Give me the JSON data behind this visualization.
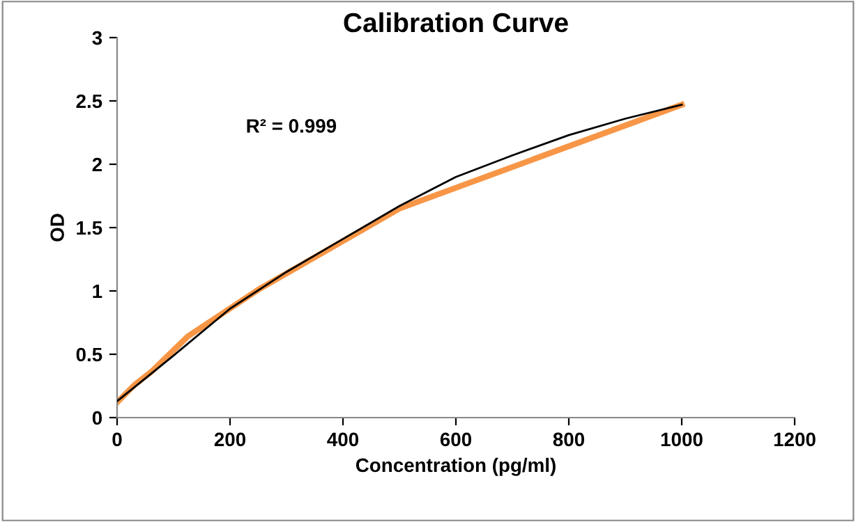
{
  "chart_data": {
    "type": "line",
    "title": "Calibration Curve",
    "xlabel": "Concentration (pg/ml)",
    "ylabel": "OD",
    "annotations": [
      "R² = 0.999"
    ],
    "series": [
      {
        "color": "#f79646",
        "x": [
          0,
          15.6,
          31.25,
          62.5,
          125,
          250,
          500,
          1000
        ],
        "values": [
          0.12,
          0.19,
          0.26,
          0.37,
          0.64,
          1.01,
          1.65,
          2.47
        ]
      },
      {
        "color": "#000000",
        "x": [
          0,
          100,
          200,
          300,
          400,
          500,
          600,
          700,
          800,
          900,
          1000
        ],
        "values": [
          0.13,
          0.49,
          0.86,
          1.15,
          1.41,
          1.67,
          1.9,
          2.07,
          2.23,
          2.36,
          2.47
        ]
      }
    ],
    "xlim": [
      0,
      1200
    ],
    "xticks": [
      0,
      200,
      400,
      600,
      800,
      1000,
      1200
    ],
    "ylim": [
      0,
      3
    ],
    "yticks": [
      0,
      0.5,
      1,
      1.5,
      2,
      2.5,
      3
    ],
    "grid": false,
    "legend": false,
    "marker": "none",
    "line_style": "solid"
  }
}
